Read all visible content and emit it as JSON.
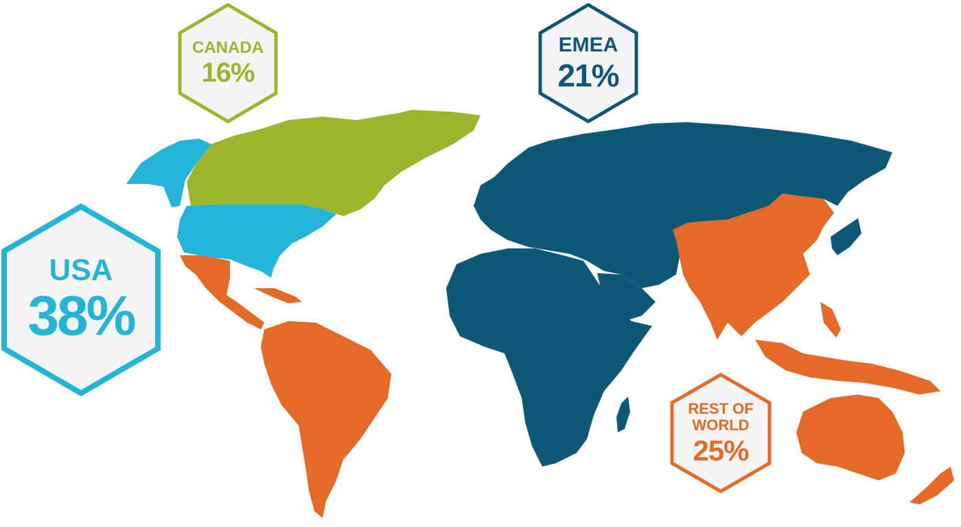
{
  "colors": {
    "usa": "#22b5d8",
    "canada": "#9cb52f",
    "emea": "#0e5877",
    "rest_of_world": "#e56a27",
    "badge_fill": "#f4f4f4"
  },
  "regions": {
    "canada": {
      "label": "CANADA",
      "percent": "16%",
      "share": 16
    },
    "emea": {
      "label": "EMEA",
      "percent": "21%",
      "share": 21
    },
    "usa": {
      "label": "USA",
      "percent": "38%",
      "share": 38
    },
    "rest_of_world": {
      "label": "REST OF WORLD",
      "label_line1": "REST OF",
      "label_line2": "WORLD",
      "percent": "25%",
      "share": 25
    }
  }
}
